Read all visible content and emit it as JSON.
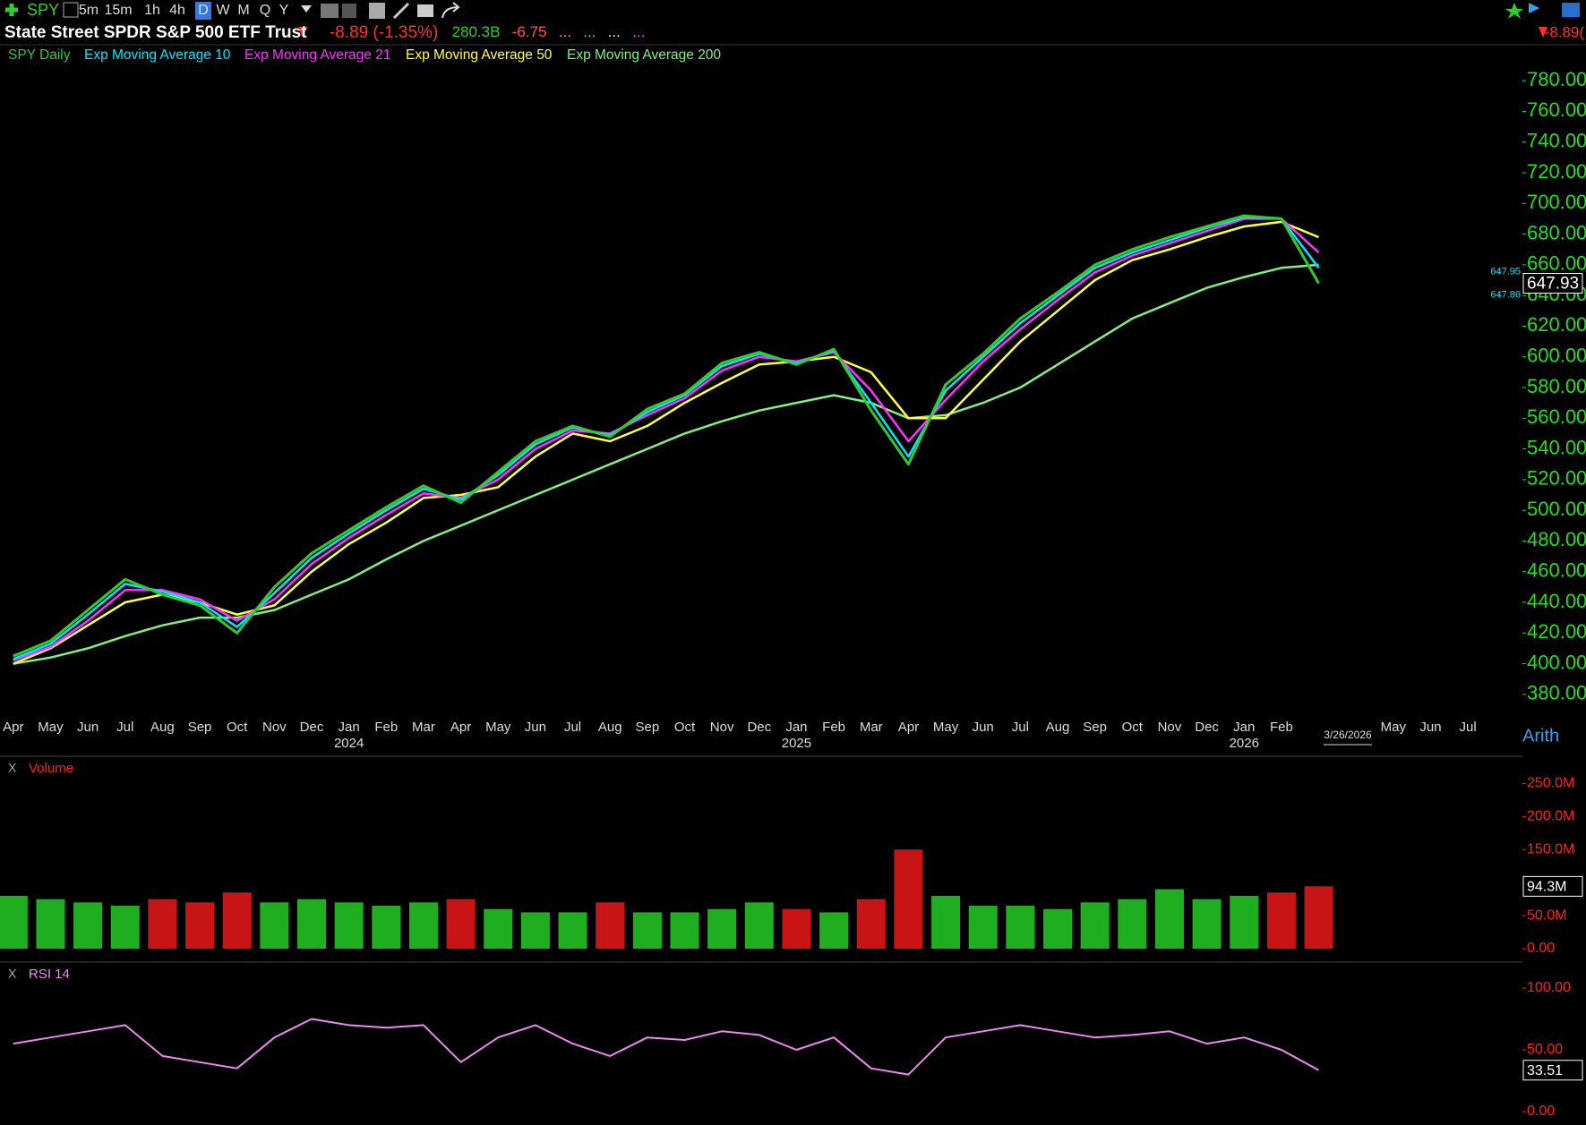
{
  "toolbar": {
    "symbol": "SPY",
    "intervals": [
      "5m",
      "15m",
      "1h",
      "4h",
      "D",
      "W",
      "M",
      "Q",
      "Y"
    ]
  },
  "header": {
    "name": "State Street SPDR S&P 500 ETF Trust",
    "change": "-8.89",
    "change_pct": "(-1.35%)",
    "volume": "280.3B",
    "change2": "-6.75",
    "dots": [
      "...",
      "...",
      "...",
      "..."
    ],
    "right_change": "-8.89("
  },
  "chart_data": [
    {
      "type": "line",
      "categories": [
        "Apr",
        "May",
        "Jun",
        "Jul",
        "Aug",
        "Sep",
        "Oct",
        "Nov",
        "Dec",
        "Jan",
        "Feb",
        "Mar",
        "Apr",
        "May",
        "Jun",
        "Jul",
        "Aug",
        "Sep",
        "Oct",
        "Nov",
        "Dec",
        "Jan",
        "Feb",
        "Mar",
        "Apr",
        "May",
        "Jun",
        "Jul",
        "Aug",
        "Sep",
        "Oct",
        "Nov",
        "Dec",
        "Jan",
        "Feb",
        null,
        null,
        "May",
        "Jun",
        "Jul"
      ],
      "year_labels": [
        "2024",
        "2025",
        "2026"
      ],
      "cursor_date": "3/26/2026",
      "scale_mode": "Arith",
      "series": [
        {
          "name": "SPY Daily",
          "color": "#2ecc2e",
          "values": [
            405,
            415,
            435,
            455,
            445,
            438,
            420,
            450,
            472,
            487,
            502,
            516,
            505,
            525,
            545,
            555,
            548,
            566,
            576,
            596,
            603,
            595,
            605,
            565,
            530,
            582,
            602,
            625,
            642,
            660,
            670,
            678,
            685,
            692,
            690,
            647.93,
            null,
            null,
            null,
            null
          ]
        },
        {
          "name": "Exp Moving Average 10",
          "color": "#00e5ff",
          "values": [
            403,
            413,
            432,
            452,
            447,
            440,
            424,
            446,
            469,
            485,
            500,
            514,
            507,
            523,
            543,
            554,
            549,
            564,
            575,
            594,
            602,
            596,
            604,
            570,
            535,
            578,
            600,
            622,
            640,
            658,
            668,
            676,
            684,
            691,
            690,
            658,
            null,
            null,
            null,
            null
          ]
        },
        {
          "name": "Exp Moving Average 21",
          "color": "#ff30ff",
          "values": [
            402,
            411,
            428,
            448,
            448,
            442,
            428,
            442,
            465,
            482,
            497,
            511,
            508,
            520,
            540,
            552,
            550,
            562,
            573,
            591,
            600,
            597,
            603,
            578,
            545,
            572,
            597,
            618,
            637,
            655,
            666,
            674,
            682,
            690,
            690,
            668,
            null,
            null,
            null,
            null
          ]
        },
        {
          "name": "Exp Moving Average 50",
          "color": "#ffff40",
          "values": [
            400,
            410,
            425,
            440,
            445,
            440,
            432,
            438,
            460,
            478,
            492,
            508,
            510,
            515,
            535,
            550,
            545,
            555,
            570,
            583,
            595,
            597,
            600,
            590,
            560,
            560,
            585,
            610,
            630,
            650,
            663,
            670,
            678,
            685,
            688,
            678,
            null,
            null,
            null,
            null
          ]
        },
        {
          "name": "Exp Moving Average 200",
          "color": "#80f080",
          "values": [
            400,
            404,
            410,
            418,
            425,
            430,
            430,
            435,
            445,
            455,
            468,
            480,
            490,
            500,
            510,
            520,
            530,
            540,
            550,
            558,
            565,
            570,
            575,
            570,
            560,
            562,
            570,
            580,
            595,
            610,
            625,
            635,
            645,
            652,
            658,
            660,
            null,
            null,
            null,
            null
          ]
        }
      ],
      "ylim": [
        370,
        790
      ],
      "yticks": [
        {
          "value": 380,
          "label": "380.00"
        },
        {
          "value": 400,
          "label": "400.00"
        },
        {
          "value": 420,
          "label": "420.00"
        },
        {
          "value": 440,
          "label": "440.00"
        },
        {
          "value": 460,
          "label": "460.00"
        },
        {
          "value": 480,
          "label": "480.00"
        },
        {
          "value": 500,
          "label": "500.00"
        },
        {
          "value": 520,
          "label": "520.00"
        },
        {
          "value": 540,
          "label": "540.00"
        },
        {
          "value": 560,
          "label": "560.00"
        },
        {
          "value": 580,
          "label": "580.00"
        },
        {
          "value": 600,
          "label": "600.00"
        },
        {
          "value": 620,
          "label": "620.00"
        },
        {
          "value": 640,
          "label": "640.00"
        },
        {
          "value": 660,
          "label": "660.00"
        },
        {
          "value": 680,
          "label": "680.00"
        },
        {
          "value": 700,
          "label": "700.00"
        },
        {
          "value": 720,
          "label": "720.00"
        },
        {
          "value": 740,
          "label": "740.00"
        },
        {
          "value": 760,
          "label": "760.00"
        },
        {
          "value": 780,
          "label": "780.00"
        }
      ],
      "last_price": {
        "value": 647.93,
        "label": "647.93"
      },
      "bid": {
        "value": 647.95,
        "label": "647.95"
      },
      "ask": {
        "value": 647.86,
        "label": "647.86"
      },
      "axis_color": "#22dd22"
    },
    {
      "type": "bar",
      "title": "Volume",
      "close_label": "X",
      "values": [
        80000000,
        75000000,
        70000000,
        65000000,
        75000000,
        70000000,
        85000000,
        70000000,
        75000000,
        70000000,
        65000000,
        70000000,
        75000000,
        60000000,
        55000000,
        55000000,
        70000000,
        55000000,
        55000000,
        60000000,
        70000000,
        60000000,
        55000000,
        75000000,
        150000000,
        80000000,
        65000000,
        65000000,
        60000000,
        70000000,
        75000000,
        90000000,
        75000000,
        80000000,
        85000000,
        94300000,
        null,
        null,
        null,
        null
      ],
      "up_color": "#1fae1f",
      "down_color": "#c81414",
      "ylim": [
        0,
        260000000
      ],
      "yticks": [
        {
          "value": 0,
          "label": "0.00"
        },
        {
          "value": 50000000,
          "label": "50.0M"
        },
        {
          "value": 150000000,
          "label": "150.0M"
        },
        {
          "value": 200000000,
          "label": "200.0M"
        },
        {
          "value": 250000000,
          "label": "250.0M"
        }
      ],
      "last_value": {
        "value": 94300000,
        "label": "94.3M"
      },
      "axis_color": "#ff2020"
    },
    {
      "type": "line",
      "title": "RSI 14",
      "close_label": "X",
      "color": "#ee88ee",
      "values": [
        55,
        60,
        65,
        70,
        45,
        40,
        35,
        60,
        75,
        70,
        68,
        70,
        40,
        60,
        70,
        55,
        45,
        60,
        58,
        65,
        62,
        50,
        60,
        35,
        30,
        60,
        65,
        70,
        65,
        60,
        62,
        65,
        55,
        60,
        50,
        33.51,
        null,
        null,
        null,
        null
      ],
      "ylim": [
        0,
        100
      ],
      "yticks": [
        {
          "value": 0,
          "label": "0.00"
        },
        {
          "value": 50,
          "label": "50.00"
        },
        {
          "value": 100,
          "label": "100.00"
        }
      ],
      "last_value": {
        "value": 33.51,
        "label": "33.51"
      },
      "axis_color": "#ff2020"
    }
  ]
}
